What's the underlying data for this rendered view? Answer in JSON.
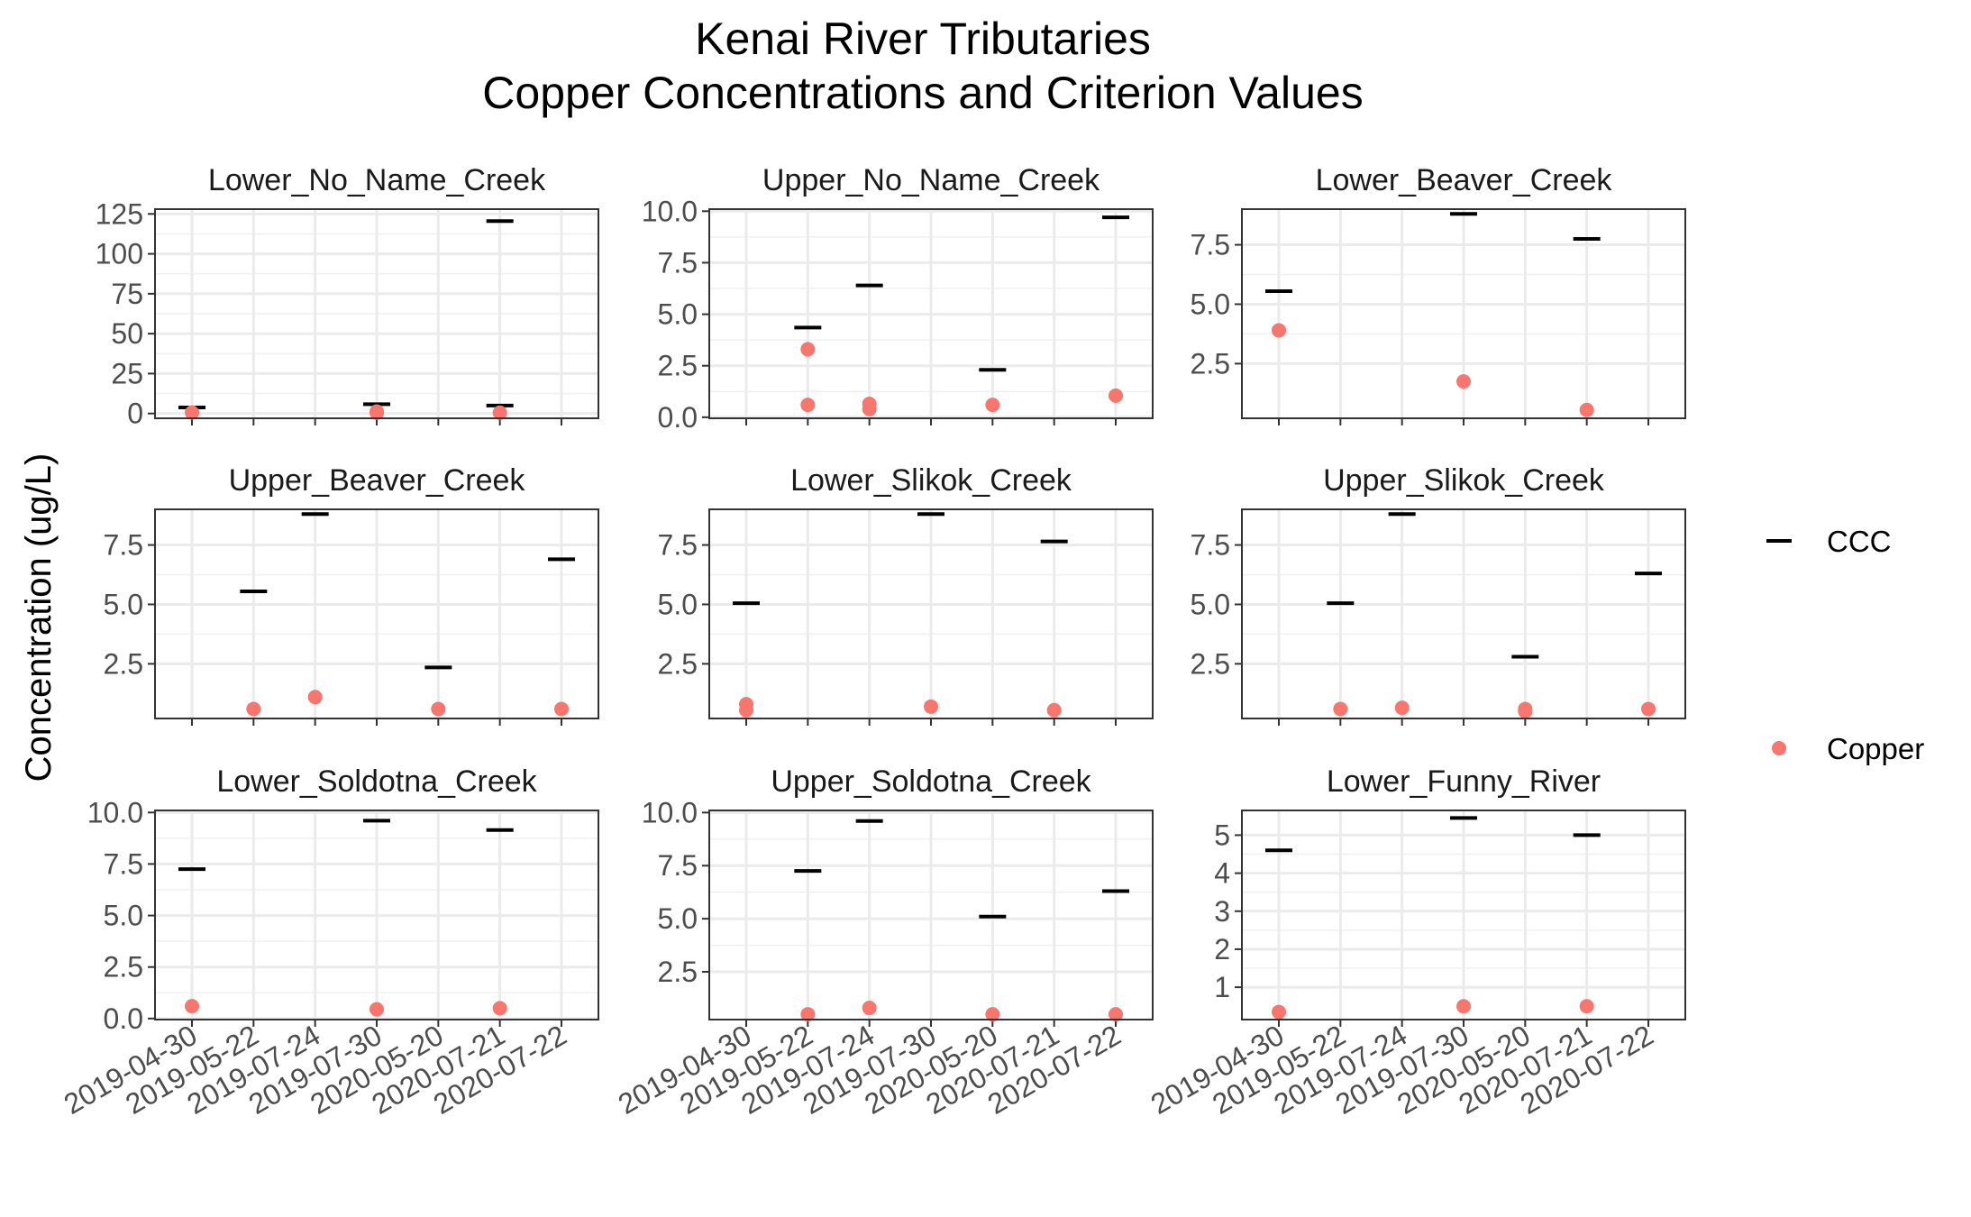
{
  "chart_data": {
    "type": "scatter",
    "title": [
      "Kenai River Tributaries",
      "Copper Concentrations and Criterion Values"
    ],
    "ylabel": "Concentration (ug/L)",
    "xlabel": "",
    "grid": true,
    "legend": {
      "placement": "right",
      "entries": [
        {
          "name": "CCC",
          "marker": "dash",
          "color": "#000000"
        },
        {
          "name": "Copper",
          "marker": "point",
          "color": "#F8766D"
        }
      ]
    },
    "categories": [
      "2019-04-30",
      "2019-05-22",
      "2019-07-24",
      "2019-07-30",
      "2020-05-20",
      "2020-07-21",
      "2020-07-22"
    ],
    "panels": [
      {
        "name": "Lower_No_Name_Creek",
        "ylim": [
          -3,
          128
        ],
        "yticks": [
          0,
          25,
          50,
          75,
          100,
          125
        ],
        "yticklabels": [
          "0",
          "25",
          "50",
          "75",
          "100",
          "125"
        ],
        "showX": false,
        "ccc": [
          [
            "2019-04-30",
            3.8
          ],
          [
            "2019-07-30",
            5.8
          ],
          [
            "2020-07-21",
            120.5
          ],
          [
            "2020-07-21",
            5.0
          ]
        ],
        "copper": [
          [
            "2019-04-30",
            0.6
          ],
          [
            "2019-07-30",
            1.2
          ],
          [
            "2019-07-30",
            0.5
          ],
          [
            "2020-07-21",
            0.5
          ]
        ]
      },
      {
        "name": "Upper_No_Name_Creek",
        "ylim": [
          -0.05,
          10.1
        ],
        "yticks": [
          0,
          2.5,
          5,
          7.5,
          10
        ],
        "yticklabels": [
          "0.0",
          "2.5",
          "5.0",
          "7.5",
          "10.0"
        ],
        "showX": false,
        "ccc": [
          [
            "2019-05-22",
            4.35
          ],
          [
            "2019-07-24",
            6.4
          ],
          [
            "2020-05-20",
            2.3
          ],
          [
            "2020-07-22",
            9.7
          ]
        ],
        "copper": [
          [
            "2019-05-22",
            3.3
          ],
          [
            "2019-05-22",
            0.6
          ],
          [
            "2019-07-24",
            0.65
          ],
          [
            "2019-07-24",
            0.4
          ],
          [
            "2020-05-20",
            0.6
          ],
          [
            "2020-07-22",
            1.05
          ]
        ]
      },
      {
        "name": "Lower_Beaver_Creek",
        "ylim": [
          0.2,
          9.0
        ],
        "yticks": [
          2.5,
          5,
          7.5
        ],
        "yticklabels": [
          "2.5",
          "5.0",
          "7.5"
        ],
        "showX": false,
        "ccc": [
          [
            "2019-04-30",
            5.55
          ],
          [
            "2019-07-30",
            8.8
          ],
          [
            "2020-07-21",
            7.75
          ]
        ],
        "copper": [
          [
            "2019-04-30",
            3.9
          ],
          [
            "2019-07-30",
            1.75
          ],
          [
            "2020-07-21",
            0.55
          ]
        ]
      },
      {
        "name": "Upper_Beaver_Creek",
        "ylim": [
          0.2,
          9.0
        ],
        "yticks": [
          2.5,
          5,
          7.5
        ],
        "yticklabels": [
          "2.5",
          "5.0",
          "7.5"
        ],
        "showX": false,
        "ccc": [
          [
            "2019-05-22",
            5.55
          ],
          [
            "2019-07-24",
            8.8
          ],
          [
            "2020-05-20",
            2.35
          ],
          [
            "2020-07-22",
            6.9
          ]
        ],
        "copper": [
          [
            "2019-05-22",
            0.6
          ],
          [
            "2019-07-24",
            1.1
          ],
          [
            "2020-05-20",
            0.6
          ],
          [
            "2020-07-22",
            0.6
          ]
        ]
      },
      {
        "name": "Lower_Slikok_Creek",
        "ylim": [
          0.2,
          9.0
        ],
        "yticks": [
          2.5,
          5,
          7.5
        ],
        "yticklabels": [
          "2.5",
          "5.0",
          "7.5"
        ],
        "showX": false,
        "ccc": [
          [
            "2019-04-30",
            5.05
          ],
          [
            "2019-07-30",
            8.8
          ],
          [
            "2020-07-21",
            7.65
          ]
        ],
        "copper": [
          [
            "2019-04-30",
            0.8
          ],
          [
            "2019-04-30",
            0.55
          ],
          [
            "2019-07-30",
            0.7
          ],
          [
            "2020-07-21",
            0.55
          ]
        ]
      },
      {
        "name": "Upper_Slikok_Creek",
        "ylim": [
          0.2,
          9.0
        ],
        "yticks": [
          2.5,
          5,
          7.5
        ],
        "yticklabels": [
          "2.5",
          "5.0",
          "7.5"
        ],
        "showX": false,
        "ccc": [
          [
            "2019-05-22",
            5.05
          ],
          [
            "2019-07-24",
            8.8
          ],
          [
            "2020-05-20",
            2.8
          ],
          [
            "2020-07-22",
            6.3
          ]
        ],
        "copper": [
          [
            "2019-05-22",
            0.6
          ],
          [
            "2019-07-24",
            0.65
          ],
          [
            "2020-05-20",
            0.6
          ],
          [
            "2020-05-20",
            0.5
          ],
          [
            "2020-07-22",
            0.6
          ]
        ]
      },
      {
        "name": "Lower_Soldotna_Creek",
        "ylim": [
          -0.05,
          10.1
        ],
        "yticks": [
          0,
          2.5,
          5,
          7.5,
          10
        ],
        "yticklabels": [
          "0.0",
          "2.5",
          "5.0",
          "7.5",
          "10.0"
        ],
        "showX": true,
        "ccc": [
          [
            "2019-04-30",
            7.25
          ],
          [
            "2019-07-30",
            9.6
          ],
          [
            "2020-07-21",
            9.15
          ]
        ],
        "copper": [
          [
            "2019-04-30",
            0.6
          ],
          [
            "2019-07-30",
            0.45
          ],
          [
            "2020-07-21",
            0.5
          ]
        ]
      },
      {
        "name": "Upper_Soldotna_Creek",
        "ylim": [
          0.25,
          10.1
        ],
        "yticks": [
          2.5,
          5,
          7.5,
          10
        ],
        "yticklabels": [
          "2.5",
          "5.0",
          "7.5",
          "10.0"
        ],
        "showX": true,
        "ccc": [
          [
            "2019-05-22",
            7.25
          ],
          [
            "2019-07-24",
            9.6
          ],
          [
            "2020-05-20",
            5.1
          ],
          [
            "2020-07-22",
            6.3
          ]
        ],
        "copper": [
          [
            "2019-05-22",
            0.5
          ],
          [
            "2019-07-24",
            0.8
          ],
          [
            "2020-05-20",
            0.5
          ],
          [
            "2020-07-22",
            0.5
          ]
        ]
      },
      {
        "name": "Lower_Funny_River",
        "ylim": [
          0.15,
          5.65
        ],
        "yticks": [
          1,
          2,
          3,
          4,
          5
        ],
        "yticklabels": [
          "1",
          "2",
          "3",
          "4",
          "5"
        ],
        "showX": true,
        "ccc": [
          [
            "2019-04-30",
            4.6
          ],
          [
            "2019-07-30",
            5.45
          ],
          [
            "2020-07-21",
            5.0
          ]
        ],
        "copper": [
          [
            "2019-04-30",
            0.35
          ],
          [
            "2019-07-30",
            0.5
          ],
          [
            "2020-07-21",
            0.5
          ]
        ]
      }
    ]
  }
}
